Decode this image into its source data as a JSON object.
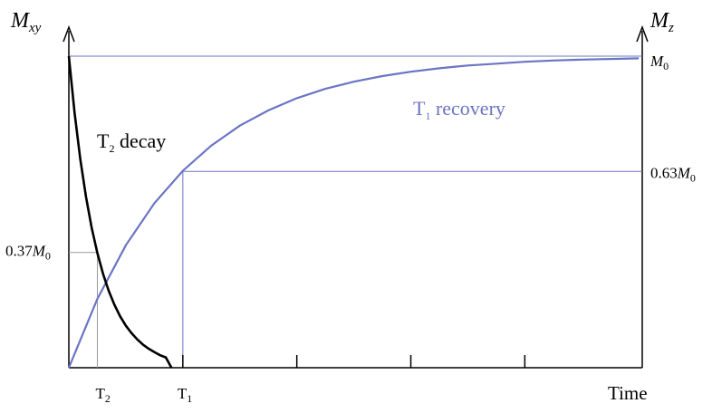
{
  "chart_data": {
    "type": "line",
    "y_left_label": {
      "main": "M",
      "sub": "xy"
    },
    "y_right_label": {
      "main": "M",
      "sub": "z"
    },
    "xlabel": "Time",
    "x_ticks": [
      {
        "label": "T",
        "sub": "2",
        "value": 0.25
      },
      {
        "label": "T",
        "sub": "1",
        "value": 1
      },
      {
        "label": "",
        "sub": "",
        "value": 2
      },
      {
        "label": "",
        "sub": "",
        "value": 3
      },
      {
        "label": "",
        "sub": "",
        "value": 4
      }
    ],
    "xlim": [
      0,
      5
    ],
    "ylim": [
      0,
      1
    ],
    "reference_levels": [
      {
        "label": "M",
        "sub": "0",
        "prefix": "",
        "value": 1.0,
        "side": "right"
      },
      {
        "label": "M",
        "sub": "0",
        "prefix": "0.63",
        "value": 0.63,
        "side": "right"
      },
      {
        "label": "M",
        "sub": "0",
        "prefix": "0.37",
        "value": 0.37,
        "side": "left"
      }
    ],
    "series": [
      {
        "name": "T2 decay",
        "label_main": "T",
        "label_sub": "2",
        "label_rest": " decay",
        "color": "#000000",
        "x": [
          0,
          0.05,
          0.1,
          0.15,
          0.2,
          0.25,
          0.3,
          0.35,
          0.4,
          0.45,
          0.5,
          0.55,
          0.6,
          0.65,
          0.7,
          0.75,
          0.8,
          0.85,
          0.9
        ],
        "y": [
          1.0,
          0.819,
          0.67,
          0.549,
          0.449,
          0.368,
          0.301,
          0.247,
          0.202,
          0.165,
          0.135,
          0.111,
          0.091,
          0.074,
          0.061,
          0.05,
          0.04,
          0.033,
          0.0
        ]
      },
      {
        "name": "T1 recovery",
        "label_main": "T",
        "label_sub": "1",
        "label_rest": " recovery",
        "color": "#6b74c4",
        "x": [
          0,
          0.25,
          0.5,
          0.75,
          1.0,
          1.25,
          1.5,
          1.75,
          2.0,
          2.25,
          2.5,
          2.75,
          3.0,
          3.25,
          3.5,
          3.75,
          4.0,
          4.25,
          4.5,
          4.75,
          5.0
        ],
        "y": [
          0,
          0.221,
          0.393,
          0.528,
          0.632,
          0.713,
          0.777,
          0.826,
          0.865,
          0.895,
          0.918,
          0.936,
          0.95,
          0.961,
          0.97,
          0.976,
          0.982,
          0.986,
          0.989,
          0.991,
          0.993
        ]
      }
    ],
    "colors": {
      "axis": "#000000",
      "guide": "#6b74c4",
      "guide_gray": "#999999"
    }
  }
}
